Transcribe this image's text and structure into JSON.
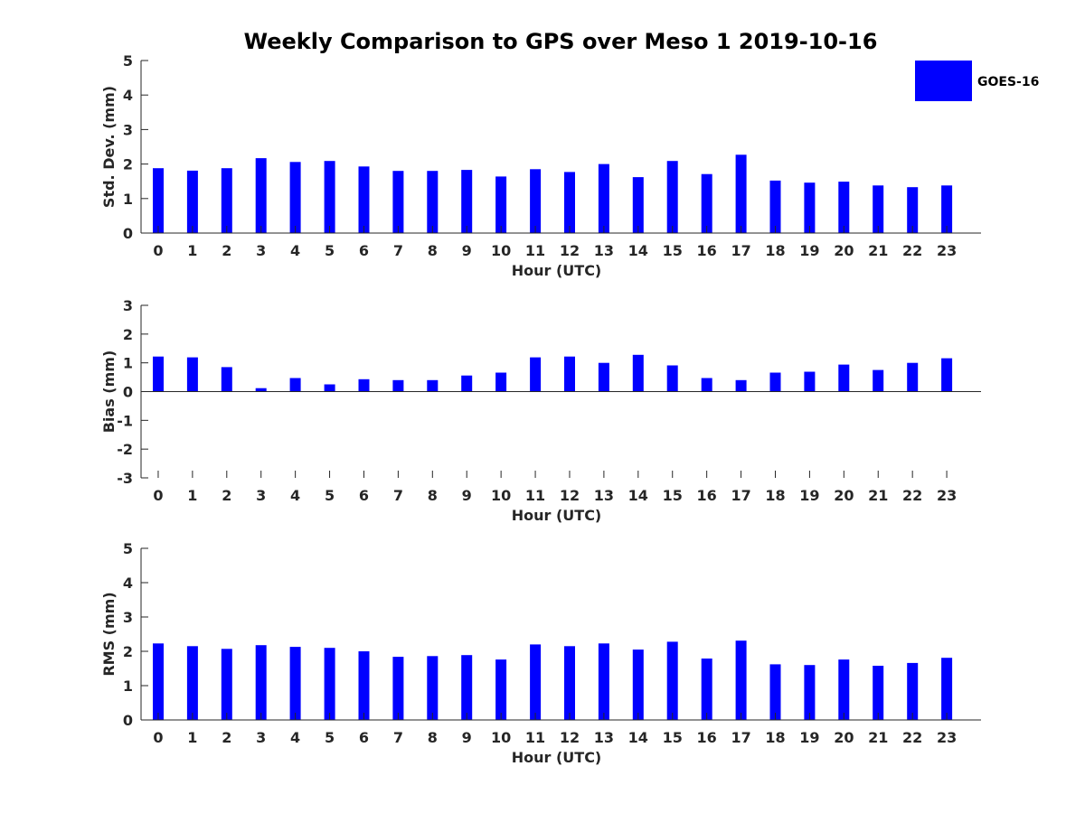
{
  "figure": {
    "title": "Weekly Comparison to GPS over Meso 1 2019-10-16",
    "legend": {
      "label": "GOES-16",
      "color": "#0000ff",
      "placement": "top-right"
    }
  },
  "chart_data": [
    {
      "type": "bar",
      "xlabel": "Hour (UTC)",
      "ylabel": "Std. Dev. (mm)",
      "ylim": [
        0,
        5
      ],
      "yticks": [
        "0",
        "1",
        "2",
        "3",
        "4",
        "5"
      ],
      "categories": [
        "0",
        "1",
        "2",
        "3",
        "4",
        "5",
        "6",
        "7",
        "8",
        "9",
        "10",
        "11",
        "12",
        "13",
        "14",
        "15",
        "16",
        "17",
        "18",
        "19",
        "20",
        "21",
        "22",
        "23"
      ],
      "series": [
        {
          "name": "GOES-16",
          "values": [
            1.88,
            1.81,
            1.88,
            2.17,
            2.06,
            2.09,
            1.93,
            1.8,
            1.8,
            1.83,
            1.64,
            1.85,
            1.77,
            2.0,
            1.62,
            2.09,
            1.71,
            2.27,
            1.52,
            1.46,
            1.49,
            1.38,
            1.33,
            1.38
          ]
        }
      ]
    },
    {
      "type": "bar",
      "xlabel": "Hour (UTC)",
      "ylabel": "Bias (mm)",
      "ylim": [
        -3,
        3
      ],
      "yticks": [
        "-3",
        "-2",
        "-1",
        "0",
        "1",
        "2",
        "3"
      ],
      "categories": [
        "0",
        "1",
        "2",
        "3",
        "4",
        "5",
        "6",
        "7",
        "8",
        "9",
        "10",
        "11",
        "12",
        "13",
        "14",
        "15",
        "16",
        "17",
        "18",
        "19",
        "20",
        "21",
        "22",
        "23"
      ],
      "series": [
        {
          "name": "GOES-16",
          "values": [
            1.22,
            1.19,
            0.85,
            0.12,
            0.47,
            0.25,
            0.43,
            0.4,
            0.4,
            0.56,
            0.66,
            1.19,
            1.22,
            1.0,
            1.28,
            0.91,
            0.47,
            0.4,
            0.66,
            0.69,
            0.94,
            0.75,
            1.0,
            1.16
          ]
        }
      ]
    },
    {
      "type": "bar",
      "xlabel": "Hour (UTC)",
      "ylabel": "RMS (mm)",
      "ylim": [
        0,
        5
      ],
      "yticks": [
        "0",
        "1",
        "2",
        "3",
        "4",
        "5"
      ],
      "categories": [
        "0",
        "1",
        "2",
        "3",
        "4",
        "5",
        "6",
        "7",
        "8",
        "9",
        "10",
        "11",
        "12",
        "13",
        "14",
        "15",
        "16",
        "17",
        "18",
        "19",
        "20",
        "21",
        "22",
        "23"
      ],
      "series": [
        {
          "name": "GOES-16",
          "values": [
            2.23,
            2.15,
            2.07,
            2.18,
            2.13,
            2.1,
            2.0,
            1.84,
            1.86,
            1.89,
            1.76,
            2.2,
            2.15,
            2.23,
            2.05,
            2.28,
            1.79,
            2.31,
            1.62,
            1.6,
            1.76,
            1.58,
            1.66,
            1.81
          ]
        }
      ]
    }
  ]
}
